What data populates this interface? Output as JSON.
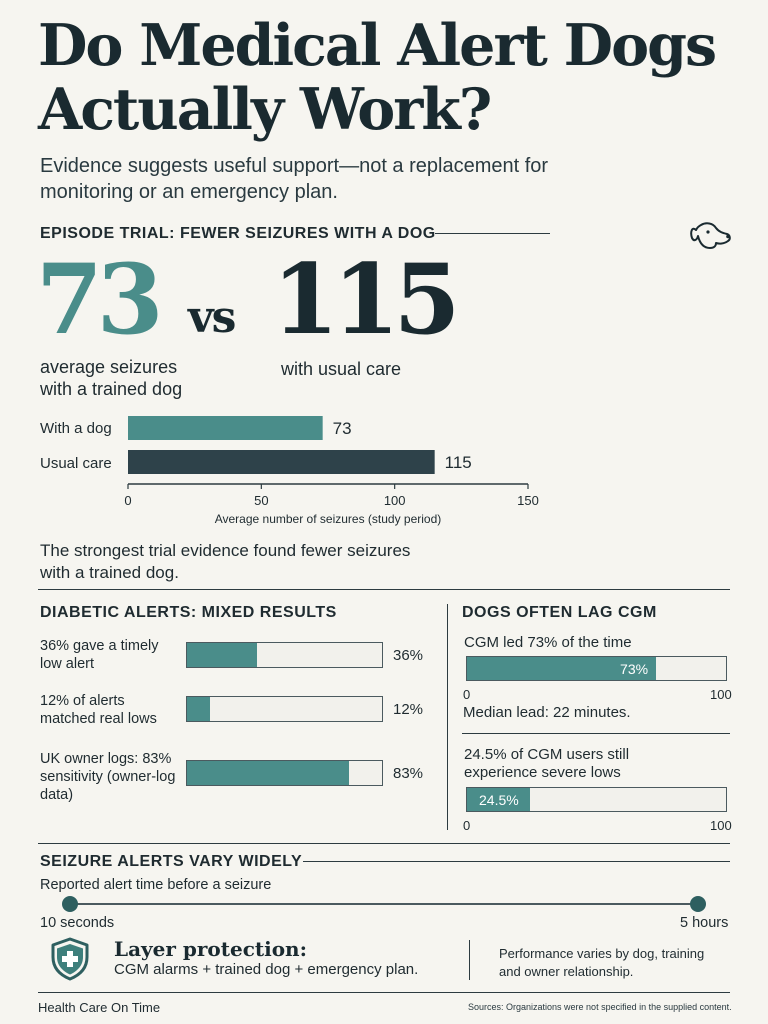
{
  "title": "Do Medical Alert Dogs Actually Work?",
  "subtitle": "Evidence suggests useful support—not a replacement for monitoring or an emergency plan.",
  "icons": {
    "dog": "dog-head-icon",
    "shield": "shield-plus-icon"
  },
  "colors": {
    "teal": "#4a8d8a",
    "dark": "#2e424a",
    "ink": "#1a2a30",
    "track": "#f2f1ec"
  },
  "episode": {
    "heading": "EPISODE TRIAL: FEWER SEIZURES WITH A DOG",
    "dog_value": "73",
    "vs": "vs",
    "usual_value": "115",
    "dog_caption": "average seizures with a trained dog",
    "usual_caption": "with usual care",
    "summary": "The strongest trial evidence found fewer seizures with a trained dog."
  },
  "diabetic": {
    "heading": "DIABETIC ALERTS: MIXED RESULTS",
    "items": [
      {
        "label": "36% gave a timely low alert",
        "value": 36,
        "value_label": "36%"
      },
      {
        "label": "12% of alerts matched real lows",
        "value": 12,
        "value_label": "12%"
      },
      {
        "label": "UK owner logs: 83% sensitivity (owner-log data)",
        "value": 83,
        "value_label": "83%"
      }
    ]
  },
  "cgm": {
    "heading": "DOGS OFTEN LAG CGM",
    "led_label": "CGM led 73% of the time",
    "led_value": 73,
    "led_value_label": "73%",
    "median_label": "Median lead: 22 minutes.",
    "severe_label": "24.5% of CGM users still experience severe lows",
    "severe_value": 24.5,
    "severe_value_label": "24.5%",
    "axis_min": "0",
    "axis_max": "100"
  },
  "seizure_alerts": {
    "heading": "SEIZURE ALERTS VARY WIDELY",
    "sublabel": "Reported alert time before a seizure",
    "min_label": "10 seconds",
    "max_label": "5 hours"
  },
  "protection": {
    "heading": "Layer protection:",
    "text": "CGM alarms + trained dog + emergency plan.",
    "note": "Performance varies by dog, training and owner relationship."
  },
  "footer": {
    "brand": "Health Care On Time",
    "sources": "Sources: Organizations were not specified in the supplied content."
  },
  "chart_data": [
    {
      "type": "bar",
      "orientation": "horizontal",
      "categories": [
        "With a dog",
        "Usual care"
      ],
      "values": [
        73,
        115
      ],
      "value_labels": [
        "73",
        "115"
      ],
      "colors": [
        "#4a8d8a",
        "#2e424a"
      ],
      "xlabel": "Average number of seizures (study period)",
      "xlim": [
        0,
        150
      ],
      "xticks": [
        0,
        50,
        100,
        150
      ],
      "xtick_labels": [
        "0",
        "50",
        "100",
        "150"
      ]
    }
  ]
}
